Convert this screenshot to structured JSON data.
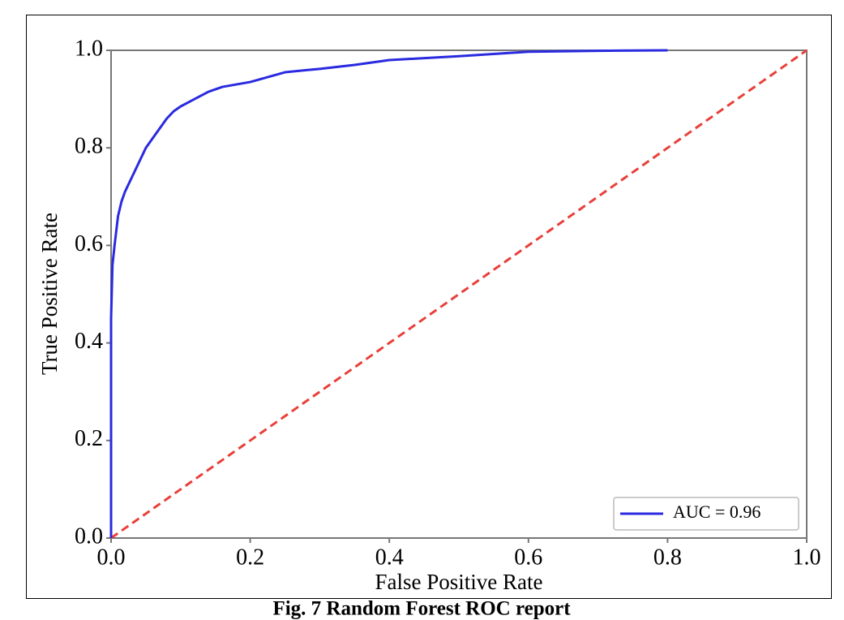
{
  "chart_data": {
    "type": "line",
    "caption": "Fig. 7 Random Forest ROC report",
    "xlabel": "False Positive Rate",
    "ylabel": "True Positive Rate",
    "xlim": [
      0,
      1
    ],
    "ylim": [
      0,
      1
    ],
    "xticks": [
      {
        "value": 0,
        "label": "0.0"
      },
      0.2,
      0.4,
      0.6,
      0.8,
      {
        "value": 1,
        "label": "1.0"
      }
    ],
    "yticks": [
      {
        "value": 0,
        "label": "0.0"
      },
      0.2,
      0.4,
      0.6,
      0.8,
      {
        "value": 1,
        "label": "1.0"
      }
    ],
    "legend": "lower right",
    "grid": false,
    "series": [
      {
        "name": "AUC = 0.96",
        "color": "#2a2ae0",
        "x": [
          0,
          0,
          0.002,
          0.005,
          0.01,
          0.015,
          0.02,
          0.03,
          0.04,
          0.05,
          0.06,
          0.07,
          0.08,
          0.09,
          0.1,
          0.12,
          0.14,
          0.16,
          0.2,
          0.25,
          0.3,
          0.35,
          0.4,
          0.5,
          0.6,
          0.7,
          0.8
        ],
        "values": [
          0,
          0.45,
          0.56,
          0.6,
          0.66,
          0.69,
          0.71,
          0.74,
          0.77,
          0.8,
          0.82,
          0.84,
          0.86,
          0.875,
          0.885,
          0.9,
          0.915,
          0.925,
          0.935,
          0.955,
          0.962,
          0.97,
          0.98,
          0.988,
          0.997,
          0.999,
          1
        ]
      },
      {
        "color": "#e8403a",
        "dashed": true,
        "x": [
          0,
          1
        ],
        "values": [
          0,
          1
        ]
      }
    ]
  }
}
